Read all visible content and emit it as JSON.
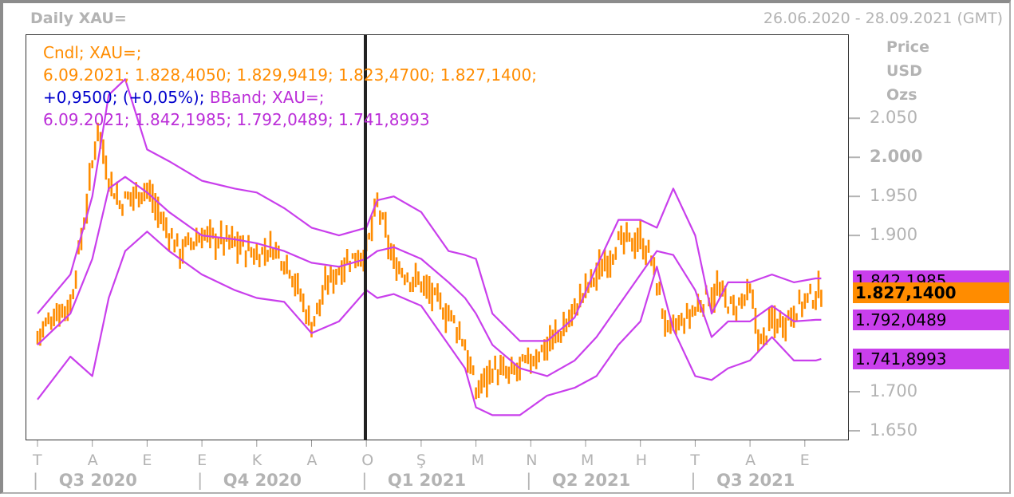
{
  "header": {
    "title": "Daily XAU=",
    "date_range": "26.06.2020 - 28.09.2021 (GMT)"
  },
  "legend": {
    "line1": "Cndl; XAU=;",
    "line2": "6.09.2021; 1.828,4050; 1.829,9419; 1.823,4700; 1.827,1400;",
    "line3_change": "+0,9500; (+0,05%);",
    "line3_bband": " BBand; XAU=;",
    "line4": "6.09.2021; 1.842,1985; 1.792,0489; 1.741,8993"
  },
  "y_axis": {
    "unit_lines": [
      "Price",
      "USD",
      "Ozs"
    ],
    "ticks": [
      {
        "label": "2.050",
        "value": 2050,
        "bold": false
      },
      {
        "label": "2.000",
        "value": 2000,
        "bold": true
      },
      {
        "label": "1.950",
        "value": 1950,
        "bold": false
      },
      {
        "label": "1.900",
        "value": 1900,
        "bold": false
      },
      {
        "label": "1.700",
        "value": 1700,
        "bold": false
      },
      {
        "label": "1.650",
        "value": 1650,
        "bold": false
      }
    ]
  },
  "price_tags": [
    {
      "label": "1.842,1985",
      "value": 1842.1985,
      "style": "p"
    },
    {
      "label": "1.827,1400",
      "value": 1827.14,
      "style": "o"
    },
    {
      "label": "1.792,0489",
      "value": 1792.0489,
      "style": "p"
    },
    {
      "label": "1.741,8993",
      "value": 1741.8993,
      "style": "p"
    }
  ],
  "x_axis": {
    "months": [
      "T",
      "A",
      "E",
      "E",
      "K",
      "A",
      "O",
      "Ş",
      "M",
      "N",
      "M",
      "H",
      "T",
      "A",
      "E"
    ],
    "quarters": [
      "Q3 2020",
      "Q4 2020",
      "Q1 2021",
      "Q2 2021",
      "Q3 2021"
    ]
  },
  "colors": {
    "candle": "#ff8c00",
    "bband": "#c93fec",
    "change": "#0000cc",
    "cursor": "#222222"
  },
  "chart_data": {
    "type": "line",
    "title": "Daily XAU=",
    "ylabel": "Price USD Ozs",
    "ylim": [
      1640,
      2075
    ],
    "x_unit": "month index (0 = 1 Jul 2020)",
    "close": {
      "x": [
        0,
        0.3,
        0.6,
        0.9,
        1.1,
        1.3,
        1.5,
        1.7,
        2.0,
        2.3,
        2.6,
        3.0,
        3.3,
        3.6,
        4.0,
        4.3,
        4.6,
        5.0,
        5.3,
        5.6,
        6.0,
        6.2,
        6.5,
        6.8,
        7.0,
        7.3,
        7.6,
        7.8,
        8.0,
        8.3,
        8.6,
        9.0,
        9.3,
        9.6,
        10.0,
        10.3,
        10.6,
        11.0,
        11.2,
        11.5,
        11.8,
        12.0,
        12.2,
        12.4,
        12.7,
        13.0,
        13.2,
        13.4,
        13.6,
        13.9,
        14.1,
        14.3
      ],
      "values": [
        1770,
        1800,
        1810,
        1940,
        2040,
        1975,
        1940,
        1950,
        1960,
        1915,
        1880,
        1900,
        1895,
        1890,
        1875,
        1885,
        1860,
        1785,
        1840,
        1865,
        1880,
        1940,
        1865,
        1845,
        1840,
        1815,
        1790,
        1760,
        1700,
        1730,
        1720,
        1740,
        1760,
        1780,
        1830,
        1860,
        1890,
        1895,
        1870,
        1775,
        1790,
        1805,
        1820,
        1830,
        1805,
        1825,
        1760,
        1790,
        1790,
        1810,
        1820,
        1827
      ]
    },
    "series": [
      {
        "name": "BBand upper",
        "x": [
          0,
          0.6,
          1.0,
          1.3,
          1.6,
          2.0,
          2.4,
          3.0,
          3.6,
          4.0,
          4.5,
          5.0,
          5.5,
          6.0,
          6.2,
          6.5,
          7.0,
          7.5,
          7.8,
          8.0,
          8.3,
          8.8,
          9.3,
          9.8,
          10.2,
          10.6,
          11.0,
          11.3,
          11.6,
          12.0,
          12.3,
          12.6,
          13.0,
          13.4,
          13.8,
          14.2,
          14.3
        ],
        "values": [
          1800,
          1850,
          1950,
          2080,
          2100,
          2010,
          1995,
          1970,
          1960,
          1955,
          1935,
          1910,
          1900,
          1910,
          1945,
          1950,
          1930,
          1880,
          1875,
          1870,
          1800,
          1765,
          1765,
          1795,
          1860,
          1920,
          1920,
          1910,
          1960,
          1900,
          1800,
          1840,
          1840,
          1850,
          1840,
          1845,
          1845
        ]
      },
      {
        "name": "BBand middle",
        "x": [
          0,
          0.6,
          1.0,
          1.3,
          1.6,
          2.0,
          2.4,
          3.0,
          3.6,
          4.0,
          4.5,
          5.0,
          5.5,
          6.0,
          6.2,
          6.5,
          7.0,
          7.5,
          7.8,
          8.0,
          8.3,
          8.8,
          9.3,
          9.8,
          10.2,
          10.6,
          11.0,
          11.3,
          11.6,
          12.0,
          12.3,
          12.6,
          13.0,
          13.4,
          13.8,
          14.2,
          14.3
        ],
        "values": [
          1760,
          1800,
          1870,
          1960,
          1975,
          1955,
          1930,
          1900,
          1895,
          1890,
          1880,
          1865,
          1860,
          1870,
          1880,
          1885,
          1870,
          1840,
          1820,
          1800,
          1760,
          1730,
          1720,
          1740,
          1770,
          1810,
          1850,
          1880,
          1875,
          1830,
          1770,
          1790,
          1790,
          1810,
          1790,
          1792,
          1792
        ]
      },
      {
        "name": "BBand lower",
        "x": [
          0,
          0.6,
          1.0,
          1.3,
          1.6,
          2.0,
          2.4,
          3.0,
          3.6,
          4.0,
          4.5,
          5.0,
          5.5,
          6.0,
          6.2,
          6.5,
          7.0,
          7.5,
          7.8,
          8.0,
          8.3,
          8.8,
          9.3,
          9.8,
          10.2,
          10.6,
          11.0,
          11.3,
          11.6,
          12.0,
          12.3,
          12.6,
          13.0,
          13.4,
          13.8,
          14.2,
          14.3
        ],
        "values": [
          1690,
          1745,
          1720,
          1820,
          1880,
          1905,
          1880,
          1850,
          1830,
          1820,
          1815,
          1775,
          1790,
          1830,
          1820,
          1825,
          1810,
          1760,
          1730,
          1680,
          1670,
          1670,
          1695,
          1705,
          1720,
          1760,
          1790,
          1860,
          1780,
          1720,
          1715,
          1730,
          1740,
          1770,
          1740,
          1740,
          1742
        ]
      }
    ]
  }
}
